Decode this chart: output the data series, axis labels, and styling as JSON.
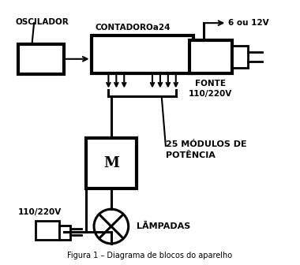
{
  "bg_color": "#ffffff",
  "line_color": "#000000",
  "title": "Figura 1 – Diagrama de blocos do aparelho",
  "labels": {
    "oscilador": "OSCILADOR",
    "contador": "CONTADOROa24",
    "modulos": "25 MÓDULOS DE\nPOTÊNCIA",
    "lampadas": "LĀMPADAS",
    "fonte_label": "FONTE",
    "fonte_voltage": "110/220V",
    "input_voltage": "110/220V",
    "source_voltage": "6 ou 12V",
    "M": "M"
  }
}
